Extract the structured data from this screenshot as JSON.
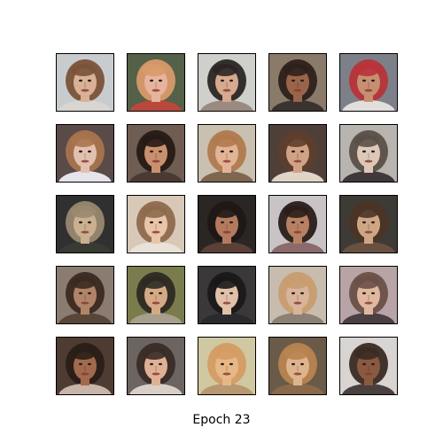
{
  "figure": {
    "caption": "Epoch 23"
  },
  "grid": {
    "rows": 5,
    "cols": 5,
    "tiles": [
      {
        "bg": "#c9cccf",
        "skin": "#d8b196",
        "hair": "#7a5238",
        "clothes": "#d9d6d2"
      },
      {
        "bg": "#556048",
        "skin": "#e6b49c",
        "hair": "#d89a6c",
        "clothes": "#b8483a"
      },
      {
        "bg": "#cfcfcc",
        "skin": "#d7a98e",
        "hair": "#2a2624",
        "clothes": "#9a8a80"
      },
      {
        "bg": "#8a7a6a",
        "skin": "#9a6448",
        "hair": "#2d211c",
        "clothes": "#3a3330"
      },
      {
        "bg": "#7d8088",
        "skin": "#c78f72",
        "hair": "#b8333a",
        "clothes": "#e2dedc"
      },
      {
        "bg": "#5a4a48",
        "skin": "#e2c0b0",
        "hair": "#a8744e",
        "clothes": "#e6e3ea"
      },
      {
        "bg": "#6f5c52",
        "skin": "#c8906e",
        "hair": "#261a16",
        "clothes": "#4a3a34"
      },
      {
        "bg": "#c9c0b0",
        "skin": "#e2b495",
        "hair": "#b07a4e",
        "clothes": "#7e6650"
      },
      {
        "bg": "#4e4038",
        "skin": "#d0a284",
        "hair": "#5e3e2c",
        "clothes": "#e0d4c8"
      },
      {
        "bg": "#b8b4b0",
        "skin": "#ddc8b8",
        "hair": "#5a5048",
        "clothes": "#40383a"
      },
      {
        "bg": "#303030",
        "skin": "#c8b090",
        "hair": "#9a8870",
        "clothes": "#3a3a34"
      },
      {
        "bg": "#d8c8b8",
        "skin": "#e8c4a8",
        "hair": "#8e6a4c",
        "clothes": "#e8e2d8"
      },
      {
        "bg": "#2a2624",
        "skin": "#b47a60",
        "hair": "#1e1816",
        "clothes": "#5a4038"
      },
      {
        "bg": "#c8c4c6",
        "skin": "#b88062",
        "hair": "#2a1e1a",
        "clothes": "#8a6a6a"
      },
      {
        "bg": "#3e3a36",
        "skin": "#cfa684",
        "hair": "#4a3426",
        "clothes": "#6a5040"
      },
      {
        "bg": "#8a7c70",
        "skin": "#b08466",
        "hair": "#3a2a22",
        "clothes": "#5a4638"
      },
      {
        "bg": "#7a7c4e",
        "skin": "#d4aa86",
        "hair": "#2e2a24",
        "clothes": "#a89e8c"
      },
      {
        "bg": "#3a3838",
        "skin": "#e0c0a8",
        "hair": "#1a1818",
        "clothes": "#2a2a2c"
      },
      {
        "bg": "#c8bcae",
        "skin": "#d8b49a",
        "hair": "#c89c70",
        "clothes": "#8a8074"
      },
      {
        "bg": "#b8a4a6",
        "skin": "#e0b8a0",
        "hair": "#6a5048",
        "clothes": "#4a4044"
      },
      {
        "bg": "#4e3c32",
        "skin": "#a26a4c",
        "hair": "#2a1e18",
        "clothes": "#c8b4a8"
      },
      {
        "bg": "#6c6460",
        "skin": "#e0b094",
        "hair": "#3a2c26",
        "clothes": "#d8d0c8"
      },
      {
        "bg": "#d0c8a0",
        "skin": "#e6b888",
        "hair": "#d49c64",
        "clothes": "#b89870"
      },
      {
        "bg": "#6a5a48",
        "skin": "#dcb48e",
        "hair": "#b88450",
        "clothes": "#8a6a4a"
      },
      {
        "bg": "#d8d4d2",
        "skin": "#8a5a40",
        "hair": "#3a2a22",
        "clothes": "#4a4040"
      }
    ]
  }
}
